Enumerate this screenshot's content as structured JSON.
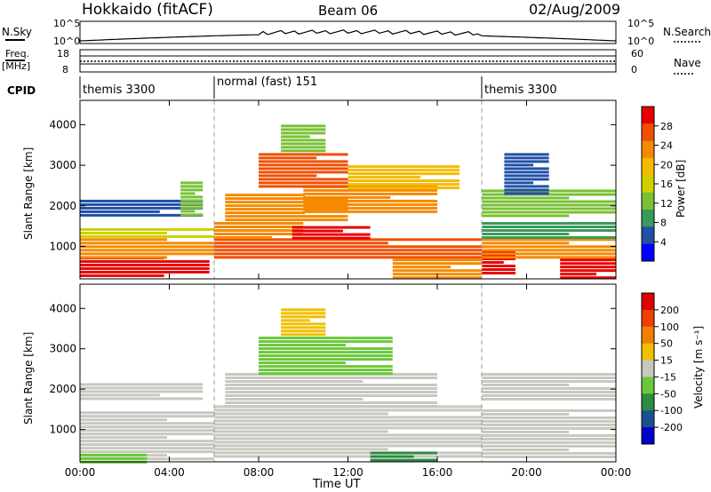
{
  "header": {
    "station": "Hokkaido (fitACF)",
    "beam": "Beam 06",
    "date": "02/Aug/2009"
  },
  "top_panels": {
    "nsky_label": "N.Sky",
    "nsky_ticks": [
      "10^5",
      "10^0"
    ],
    "nsearch_label": "N.Search",
    "nsearch_ticks": [
      "10^5",
      "10^0"
    ],
    "freq_label_1": "Freq.",
    "freq_label_2": "[MHz]",
    "freq_ticks": [
      "18",
      "8"
    ],
    "nave_label": "Nave",
    "nave_ticks": [
      "60",
      "0"
    ],
    "cpid_label": "CPID",
    "modes": [
      {
        "label": "themis 3300",
        "start_hour": 0
      },
      {
        "label": "normal (fast) 151",
        "start_hour": 6
      },
      {
        "label": "themis 3300",
        "start_hour": 18
      }
    ]
  },
  "colors": {
    "power_scale": [
      "#0000ff",
      "#2050a8",
      "#3a9a5a",
      "#79c035",
      "#d0d000",
      "#f6ba00",
      "#f58a00",
      "#f04f00",
      "#e80000"
    ],
    "velocity_scale": [
      "#0000cc",
      "#1a5090",
      "#2c8c40",
      "#6bc83a",
      "#c8c8c0",
      "#f0c000",
      "#f08000",
      "#f04000",
      "#e00000"
    ]
  },
  "chart_data": [
    {
      "type": "heatmap",
      "name": "power",
      "ylabel": "Slant Range [km]",
      "xlabel": "Time UT",
      "xlim": [
        0,
        24
      ],
      "ylim": [
        200,
        4600
      ],
      "x_ticks": [
        "00:00",
        "04:00",
        "08:00",
        "12:00",
        "16:00",
        "20:00",
        "00:00"
      ],
      "y_ticks": [
        "1000",
        "2000",
        "3000",
        "4000"
      ],
      "colorbar": {
        "label": "Power [dB]",
        "ticks": [
          "28",
          "24",
          "20",
          "16",
          "12",
          "8",
          "4"
        ],
        "range": [
          0,
          30
        ]
      },
      "regions": [
        {
          "t0": 0,
          "t1": 5.8,
          "r0": 250,
          "r1": 750,
          "value": 28
        },
        {
          "t0": 0,
          "t1": 6,
          "r0": 750,
          "r1": 1200,
          "value": 22
        },
        {
          "t0": 0,
          "t1": 6,
          "r0": 1200,
          "r1": 1450,
          "value": 14
        },
        {
          "t0": 0,
          "t1": 5.5,
          "r0": 1750,
          "r1": 2150,
          "value": 5
        },
        {
          "t0": 4.5,
          "t1": 5.5,
          "r0": 1800,
          "r1": 2600,
          "value": 12
        },
        {
          "t0": 6,
          "t1": 18,
          "r0": 700,
          "r1": 1200,
          "value": 24
        },
        {
          "t0": 6,
          "t1": 10,
          "r0": 1200,
          "r1": 1600,
          "value": 22
        },
        {
          "t0": 9.5,
          "t1": 13,
          "r0": 1200,
          "r1": 1500,
          "value": 29
        },
        {
          "t0": 6.5,
          "t1": 12,
          "r0": 1600,
          "r1": 2300,
          "value": 20
        },
        {
          "t0": 10,
          "t1": 16,
          "r0": 1800,
          "r1": 2500,
          "value": 22
        },
        {
          "t0": 12,
          "t1": 17,
          "r0": 2400,
          "r1": 3000,
          "value": 18
        },
        {
          "t0": 8,
          "t1": 12,
          "r0": 2500,
          "r1": 3300,
          "value": 24
        },
        {
          "t0": 9,
          "t1": 11,
          "r0": 3300,
          "r1": 4000,
          "value": 12
        },
        {
          "t0": 14,
          "t1": 18,
          "r0": 250,
          "r1": 700,
          "value": 22
        },
        {
          "t0": 18,
          "t1": 19.5,
          "r0": 300,
          "r1": 900,
          "value": 29
        },
        {
          "t0": 18,
          "t1": 24,
          "r0": 700,
          "r1": 1200,
          "value": 23
        },
        {
          "t0": 21.5,
          "t1": 24,
          "r0": 250,
          "r1": 700,
          "value": 28
        },
        {
          "t0": 18,
          "t1": 24,
          "r0": 1200,
          "r1": 1600,
          "value": 8
        },
        {
          "t0": 18,
          "t1": 24,
          "r0": 1700,
          "r1": 2400,
          "value": 10
        },
        {
          "t0": 19,
          "t1": 21,
          "r0": 2300,
          "r1": 3300,
          "value": 5
        }
      ]
    },
    {
      "type": "heatmap",
      "name": "velocity",
      "ylabel": "Slant Range [km]",
      "xlabel": "Time UT",
      "xlim": [
        0,
        24
      ],
      "ylim": [
        200,
        4600
      ],
      "x_ticks": [
        "00:00",
        "04:00",
        "08:00",
        "12:00",
        "16:00",
        "20:00",
        "00:00"
      ],
      "y_ticks": [
        "1000",
        "2000",
        "3000",
        "4000"
      ],
      "colorbar": {
        "label": "Velocity [m s⁻¹]",
        "ticks": [
          "200",
          "100",
          "50",
          "15",
          "-15",
          "-50",
          "-100",
          "-200"
        ],
        "range": [
          -250,
          250
        ]
      },
      "regions": [
        {
          "t0": 0,
          "t1": 6,
          "r0": 250,
          "r1": 1450,
          "value": 0
        },
        {
          "t0": 0,
          "t1": 5.5,
          "r0": 1750,
          "r1": 2150,
          "value": 0
        },
        {
          "t0": 6,
          "t1": 18,
          "r0": 300,
          "r1": 1600,
          "value": 0
        },
        {
          "t0": 6.5,
          "t1": 16,
          "r0": 1600,
          "r1": 2400,
          "value": 0
        },
        {
          "t0": 8,
          "t1": 14,
          "r0": 2400,
          "r1": 3300,
          "value": -40
        },
        {
          "t0": 9,
          "t1": 11,
          "r0": 3300,
          "r1": 4000,
          "value": 30
        },
        {
          "t0": 18,
          "t1": 24,
          "r0": 300,
          "r1": 1500,
          "value": 0
        },
        {
          "t0": 18,
          "t1": 24,
          "r0": 1700,
          "r1": 2400,
          "value": 0
        },
        {
          "t0": 13,
          "t1": 16,
          "r0": 200,
          "r1": 450,
          "value": -120
        },
        {
          "t0": 0,
          "t1": 3,
          "r0": 200,
          "r1": 400,
          "value": -60
        }
      ]
    }
  ]
}
